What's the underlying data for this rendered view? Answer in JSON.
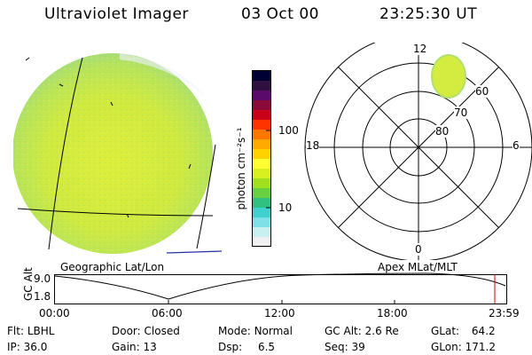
{
  "header": {
    "title": "Ultraviolet Imager",
    "date": "03 Oct 00",
    "time": "23:25:30 UT"
  },
  "colorbar": {
    "unit_label": "photon cm⁻²s⁻¹",
    "ticks": [
      "100",
      "10"
    ],
    "colors": [
      "#000033",
      "#301040",
      "#5a0a6a",
      "#8b0a3a",
      "#c8001a",
      "#ff3300",
      "#ff7700",
      "#ffaa00",
      "#ffd200",
      "#ffff33",
      "#d8f020",
      "#a0e020",
      "#66d040",
      "#30c080",
      "#40d0d0",
      "#80e0e8",
      "#c8f0f0",
      "#f0f0f0"
    ]
  },
  "left_map": {
    "caption": "Geographic Lat/Lon",
    "fill_color": "#d4ec40"
  },
  "polar_map": {
    "caption": "Apex MLat/MLT",
    "mlt_labels": {
      "top": "12",
      "right": "6",
      "bottom": "0",
      "left": "18"
    },
    "lat_labels": [
      "60",
      "70",
      "80"
    ]
  },
  "altitude_plot": {
    "ylabel": "GC Alt",
    "yticks": [
      "9.0",
      "1.8"
    ],
    "xticks": [
      "00:00",
      "06:00",
      "12:00",
      "18:00",
      "23:59"
    ],
    "current_marker_color": "#cc0000"
  },
  "info": {
    "flt_label": "Flt:",
    "flt_value": "LBHL",
    "ip_label": "IP:",
    "ip_value": "36.0",
    "door_label": "Door:",
    "door_value": "Closed",
    "gain_label": "Gain:",
    "gain_value": "13",
    "mode_label": "Mode:",
    "mode_value": "Normal",
    "dsp_label": "Dsp:",
    "dsp_value": "6.5",
    "gcalt_label": "GC Alt:",
    "gcalt_value": "2.6 Re",
    "seq_label": "Seq:",
    "seq_value": "39",
    "glat_label": "GLat:",
    "glat_value": "64.2",
    "glon_label": "GLon:",
    "glon_value": "171.2"
  }
}
